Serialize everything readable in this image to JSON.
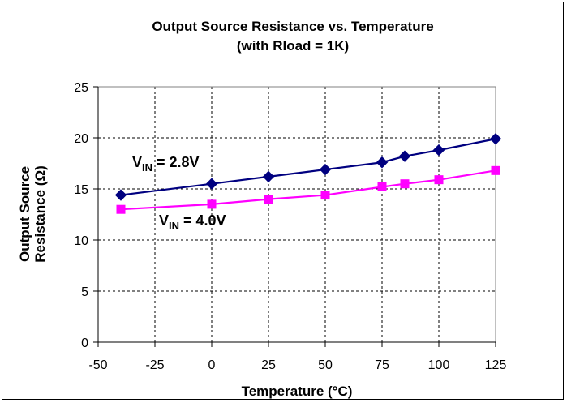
{
  "chart_data": {
    "type": "line",
    "title": "Output Source Resistance vs. Temperature",
    "subtitle": "(with Rload = 1K)",
    "xlabel": "Temperature  (°C)",
    "ylabel": [
      "Output Source",
      "Resistance (Ω)"
    ],
    "xlim": [
      -50,
      125
    ],
    "ylim": [
      0,
      25
    ],
    "xticks": [
      -50,
      -25,
      0,
      25,
      50,
      75,
      100,
      125
    ],
    "yticks": [
      0,
      5,
      10,
      15,
      20,
      25
    ],
    "grid": true,
    "series": [
      {
        "label_main": "V",
        "label_sub": "IN",
        "label_rest": " = 2.8V",
        "color": "#000080",
        "marker": "diamond",
        "x": [
          -40,
          0,
          25,
          50,
          75,
          85,
          100,
          125
        ],
        "values": [
          14.4,
          15.5,
          16.2,
          16.9,
          17.6,
          18.2,
          18.8,
          19.9
        ]
      },
      {
        "label_main": "V",
        "label_sub": "IN",
        "label_rest": " = 4.0V",
        "color": "#ff00ff",
        "marker": "square",
        "x": [
          -40,
          0,
          25,
          50,
          75,
          85,
          100,
          125
        ],
        "values": [
          13.0,
          13.5,
          14.0,
          14.4,
          15.2,
          15.5,
          15.9,
          16.8
        ]
      }
    ]
  }
}
